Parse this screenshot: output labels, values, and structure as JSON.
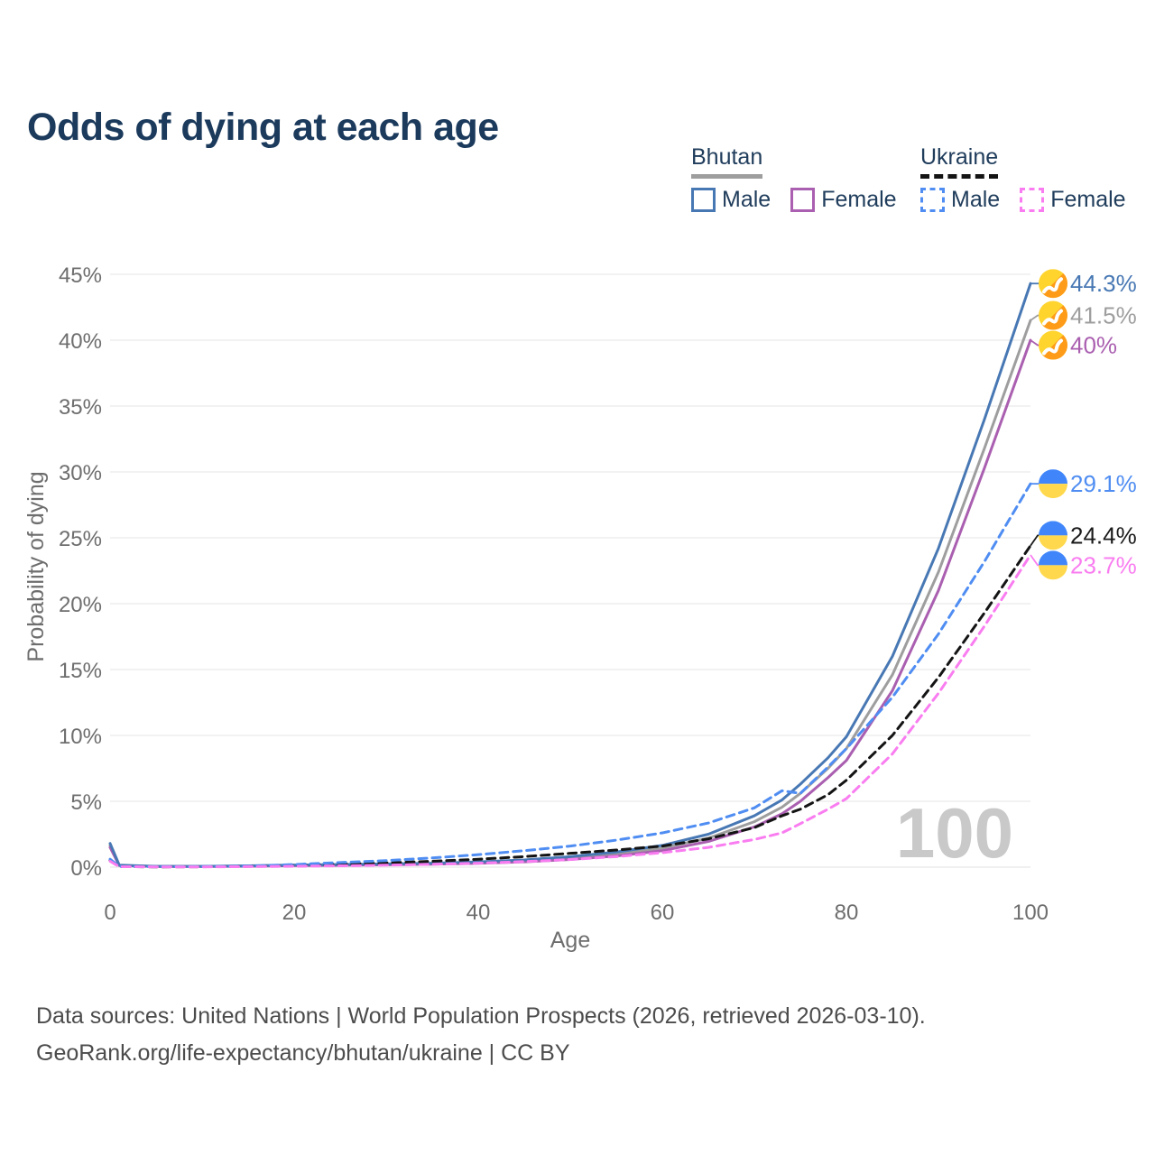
{
  "title": "Odds of dying at each age",
  "watermark": "100",
  "legend": {
    "bhutan": {
      "name": "Bhutan",
      "line_color": "#9e9e9e",
      "line_style": "solid",
      "male_label": "Male",
      "male_color": "#4878b4",
      "female_label": "Female",
      "female_color": "#aa5fb0"
    },
    "ukraine": {
      "name": "Ukraine",
      "line_color": "#141414",
      "line_style": "dashed",
      "male_label": "Male",
      "male_color": "#4f8df2",
      "female_label": "Female",
      "female_color": "#f97df0"
    }
  },
  "footer": {
    "line1": "Data sources: United Nations | World Population Prospects (2026, retrieved 2026-03-10).",
    "line2": "GeoRank.org/life-expectancy/bhutan/ukraine | CC BY"
  },
  "chart_data": {
    "type": "line",
    "title": "Odds of dying at each age",
    "xlabel": "Age",
    "ylabel": "Probability of dying",
    "xlim": [
      0,
      100
    ],
    "ylim": [
      0,
      45
    ],
    "xticks": [
      0,
      20,
      40,
      60,
      80,
      100
    ],
    "yticks": [
      0,
      5,
      10,
      15,
      20,
      25,
      30,
      35,
      40,
      45
    ],
    "grid": "horizontal",
    "legend_position": "top-right",
    "ages": [
      0,
      1,
      5,
      10,
      15,
      20,
      25,
      30,
      35,
      40,
      45,
      50,
      55,
      60,
      65,
      70,
      73,
      75,
      78,
      80,
      85,
      90,
      95,
      100
    ],
    "series": [
      {
        "id": "bhutan-total",
        "name": "Bhutan",
        "color": "#9e9e9e",
        "dashed": false,
        "values": [
          1.65,
          0.13,
          0.05,
          0.05,
          0.09,
          0.13,
          0.17,
          0.21,
          0.26,
          0.34,
          0.47,
          0.68,
          1.0,
          1.45,
          2.2,
          3.45,
          4.55,
          5.6,
          7.5,
          9.0,
          14.6,
          22.4,
          31.8,
          41.5
        ]
      },
      {
        "id": "bhutan-female",
        "name": "Bhutan Female",
        "color": "#aa5fb0",
        "dashed": false,
        "values": [
          1.5,
          0.12,
          0.05,
          0.05,
          0.07,
          0.11,
          0.14,
          0.18,
          0.22,
          0.29,
          0.4,
          0.58,
          0.85,
          1.25,
          1.95,
          3.05,
          4.05,
          5.0,
          6.8,
          8.1,
          13.4,
          21.0,
          30.3,
          40.0
        ]
      },
      {
        "id": "bhutan-male",
        "name": "Bhutan Male",
        "color": "#4878b4",
        "dashed": false,
        "values": [
          1.8,
          0.15,
          0.06,
          0.06,
          0.1,
          0.16,
          0.2,
          0.25,
          0.3,
          0.4,
          0.55,
          0.8,
          1.15,
          1.65,
          2.5,
          3.9,
          5.1,
          6.3,
          8.3,
          9.9,
          16.0,
          24.2,
          34.0,
          44.3
        ]
      },
      {
        "id": "ukraine-total",
        "name": "Ukraine",
        "color": "#141414",
        "dashed": true,
        "values": [
          0.5,
          0.04,
          0.02,
          0.03,
          0.06,
          0.13,
          0.22,
          0.32,
          0.45,
          0.6,
          0.8,
          1.05,
          1.3,
          1.6,
          2.15,
          3.0,
          3.9,
          4.4,
          5.5,
          6.6,
          10.0,
          14.4,
          19.3,
          24.4
        ]
      },
      {
        "id": "ukraine-male",
        "name": "Ukraine Male",
        "color": "#4f8df2",
        "dashed": true,
        "values": [
          0.6,
          0.05,
          0.03,
          0.04,
          0.08,
          0.2,
          0.35,
          0.5,
          0.7,
          0.95,
          1.25,
          1.6,
          2.05,
          2.6,
          3.35,
          4.5,
          5.8,
          5.6,
          7.6,
          9.0,
          12.9,
          17.7,
          23.2,
          29.1
        ]
      },
      {
        "id": "ukraine-female",
        "name": "Ukraine Female",
        "color": "#f97df0",
        "dashed": true,
        "values": [
          0.45,
          0.04,
          0.02,
          0.02,
          0.04,
          0.07,
          0.1,
          0.15,
          0.22,
          0.3,
          0.42,
          0.58,
          0.8,
          1.1,
          1.5,
          2.1,
          2.6,
          3.3,
          4.4,
          5.2,
          8.6,
          13.2,
          18.3,
          23.7
        ]
      }
    ],
    "end_labels": [
      {
        "text": "44.3%",
        "series": "Bhutan Male",
        "value": 44.3,
        "color": "#4878b4",
        "flag": "bhutan"
      },
      {
        "text": "41.5%",
        "series": "Bhutan",
        "value": 41.5,
        "color": "#9e9e9e",
        "flag": "bhutan"
      },
      {
        "text": "40%",
        "series": "Bhutan Female",
        "value": 40,
        "color": "#aa5fb0",
        "flag": "bhutan"
      },
      {
        "text": "29.1%",
        "series": "Ukraine Male",
        "value": 29.1,
        "color": "#4f8df2",
        "flag": "ukraine"
      },
      {
        "text": "24.4%",
        "series": "Ukraine",
        "value": 24.4,
        "color": "#1a1a1a",
        "flag": "ukraine"
      },
      {
        "text": "23.7%",
        "series": "Ukraine Female",
        "value": 23.7,
        "color": "#f97df0",
        "flag": "ukraine"
      }
    ]
  }
}
